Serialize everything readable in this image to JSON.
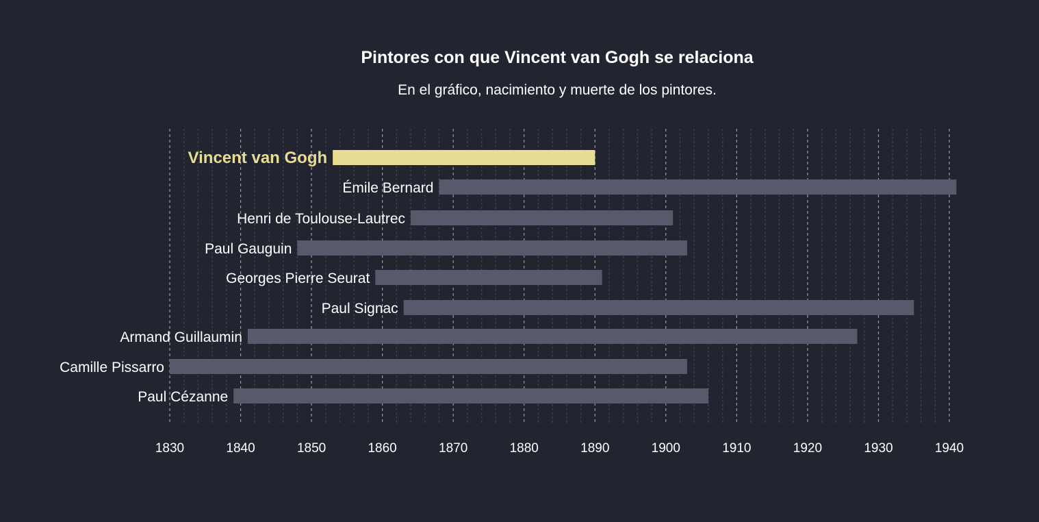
{
  "chart_data": {
    "type": "bar",
    "orientation": "horizontal-range",
    "title": "Pintores con que Vincent van Gogh se relaciona",
    "subtitle": "En el gráfico, nacimiento y muerte de los pintores.",
    "xlabel": "",
    "ylabel": "",
    "xlim": [
      1830,
      1941
    ],
    "x_ticks": [
      1830,
      1840,
      1850,
      1860,
      1870,
      1880,
      1890,
      1900,
      1910,
      1920,
      1930,
      1940
    ],
    "grid": "vertical",
    "highlight": "Vincent van Gogh",
    "painters": [
      {
        "name": "Vincent van Gogh",
        "birth": 1853,
        "death": 1890
      },
      {
        "name": "Émile Bernard",
        "birth": 1868,
        "death": 1941
      },
      {
        "name": "Henri de Toulouse-Lautrec",
        "birth": 1864,
        "death": 1901
      },
      {
        "name": "Paul Gauguin",
        "birth": 1848,
        "death": 1903
      },
      {
        "name": "Georges Pierre Seurat",
        "birth": 1859,
        "death": 1891
      },
      {
        "name": "Paul Signac",
        "birth": 1863,
        "death": 1935
      },
      {
        "name": "Armand Guillaumin",
        "birth": 1841,
        "death": 1927
      },
      {
        "name": "Camille Pissarro",
        "birth": 1830,
        "death": 1903
      },
      {
        "name": "Paul Cézanne",
        "birth": 1839,
        "death": 1906
      }
    ]
  },
  "colors": {
    "background": "#222530",
    "bar": "#585a6c",
    "highlight": "#e8dc92",
    "text": "#ffffff",
    "grid_major": "#9a9cab",
    "grid_minor": "#3e4150"
  }
}
